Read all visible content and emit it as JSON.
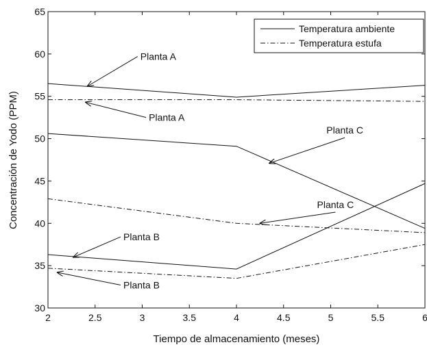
{
  "chart_data": {
    "type": "line",
    "xlabel": "Tiempo de almacenamiento (meses)",
    "ylabel": "Concentración de Yodo (PPM)",
    "xlim": [
      2,
      6
    ],
    "ylim": [
      30,
      65
    ],
    "x_ticks": [
      "2",
      "2.5",
      "3",
      "3.5",
      "4",
      "4.5",
      "5",
      "5.5",
      "6"
    ],
    "y_ticks": [
      "30",
      "35",
      "40",
      "45",
      "50",
      "55",
      "60",
      "65"
    ],
    "grid": false,
    "legend": {
      "placement": "top-right",
      "entries": [
        {
          "label": "Temperatura ambiente",
          "style": "solid"
        },
        {
          "label": "Temperatura estufa",
          "style": "dashdot"
        }
      ]
    },
    "series": [
      {
        "id": "a-amb",
        "style": "solid",
        "x": [
          2,
          4,
          6
        ],
        "y": [
          56.5,
          54.9,
          56.3
        ]
      },
      {
        "id": "a-est",
        "style": "dashdot",
        "x": [
          2,
          4,
          6
        ],
        "y": [
          54.6,
          54.6,
          54.4
        ]
      },
      {
        "id": "c-amb",
        "style": "solid",
        "x": [
          2,
          4,
          6
        ],
        "y": [
          50.6,
          49.1,
          39.4
        ]
      },
      {
        "id": "c-est",
        "style": "dashdot",
        "x": [
          2,
          4,
          6
        ],
        "y": [
          42.9,
          40.0,
          38.9
        ]
      },
      {
        "id": "b-amb",
        "style": "solid",
        "x": [
          2,
          4,
          6
        ],
        "y": [
          36.3,
          34.6,
          44.7
        ]
      },
      {
        "id": "b-est",
        "style": "dashdot",
        "x": [
          2,
          4,
          6
        ],
        "y": [
          34.7,
          33.5,
          37.5
        ]
      }
    ],
    "annotations": [
      {
        "text": "Planta A",
        "text_at": [
          2.98,
          59.3
        ],
        "arrow_to": [
          2.42,
          56.2
        ],
        "align": "left"
      },
      {
        "text": "Planta A",
        "text_at": [
          3.07,
          52.1
        ],
        "arrow_to": [
          2.4,
          54.3
        ],
        "align": "left"
      },
      {
        "text": "Planta C",
        "text_at": [
          5.15,
          50.6
        ],
        "arrow_to": [
          4.35,
          47.1
        ],
        "align": "middle"
      },
      {
        "text": "Planta C",
        "text_at": [
          5.05,
          41.8
        ],
        "arrow_to": [
          4.25,
          40.0
        ],
        "align": "middle"
      },
      {
        "text": "Planta B",
        "text_at": [
          2.8,
          38.0
        ],
        "arrow_to": [
          2.27,
          36.0
        ],
        "align": "left"
      },
      {
        "text": "Planta B",
        "text_at": [
          2.8,
          32.3
        ],
        "arrow_to": [
          2.1,
          34.2
        ],
        "align": "left"
      }
    ]
  }
}
